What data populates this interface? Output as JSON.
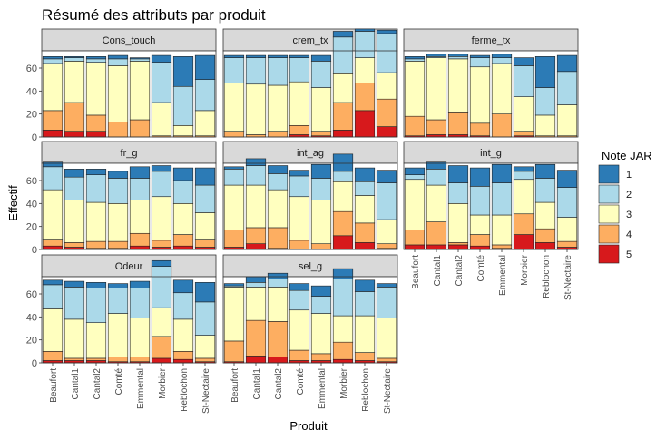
{
  "chart_data": {
    "type": "bar",
    "title": "Résumé des attributs par produit",
    "xlabel": "Produit",
    "ylabel": "Effectif",
    "ylim": [
      0,
      75
    ],
    "yticks": [
      0,
      20,
      40,
      60
    ],
    "categories": [
      "Beaufort",
      "Cantal1",
      "Cantal2",
      "Comté",
      "Emmental",
      "Morbier",
      "Reblochon",
      "St-Nectaire"
    ],
    "legend": {
      "title": "Note JAR",
      "position": "right",
      "levels": [
        {
          "label": "1",
          "color": "#2C7BB6"
        },
        {
          "label": "2",
          "color": "#ABD9E9"
        },
        {
          "label": "3",
          "color": "#FFFFBF"
        },
        {
          "label": "4",
          "color": "#FDAE61"
        },
        {
          "label": "5",
          "color": "#D7191C"
        }
      ]
    },
    "panels": [
      {
        "name": "Cons_touch",
        "counts": [
          [
            2,
            4,
            41,
            17,
            6
          ],
          [
            1,
            3,
            36,
            25,
            5
          ],
          [
            2,
            3,
            46,
            14,
            5
          ],
          [
            3,
            6,
            49,
            13,
            0
          ],
          [
            1,
            2,
            51,
            15,
            0
          ],
          [
            6,
            35,
            29,
            1,
            0
          ],
          [
            26,
            34,
            9,
            1,
            0
          ],
          [
            21,
            27,
            22,
            1,
            0
          ]
        ]
      },
      {
        "name": "crem_tx",
        "counts": [
          [
            2,
            22,
            42,
            5,
            0
          ],
          [
            2,
            23,
            44,
            2,
            0
          ],
          [
            2,
            24,
            40,
            5,
            0
          ],
          [
            2,
            21,
            38,
            8,
            2
          ],
          [
            5,
            23,
            38,
            4,
            1
          ],
          [
            5,
            32,
            25,
            24,
            6
          ],
          [
            2,
            23,
            22,
            24,
            23
          ],
          [
            3,
            34,
            23,
            24,
            9
          ]
        ]
      },
      {
        "name": "ferme_tx",
        "counts": [
          [
            2,
            2,
            48,
            17,
            1
          ],
          [
            2,
            1,
            54,
            13,
            2
          ],
          [
            2,
            2,
            47,
            19,
            2
          ],
          [
            2,
            8,
            49,
            11,
            1
          ],
          [
            3,
            5,
            44,
            20,
            0
          ],
          [
            7,
            27,
            30,
            4,
            1
          ],
          [
            27,
            24,
            18,
            1,
            0
          ],
          [
            14,
            29,
            27,
            1,
            0
          ]
        ]
      },
      {
        "name": "fr_g",
        "counts": [
          [
            4,
            20,
            43,
            6,
            3
          ],
          [
            7,
            20,
            37,
            4,
            2
          ],
          [
            5,
            24,
            34,
            6,
            1
          ],
          [
            6,
            22,
            33,
            6,
            1
          ],
          [
            10,
            19,
            29,
            11,
            3
          ],
          [
            5,
            22,
            38,
            6,
            2
          ],
          [
            11,
            20,
            27,
            10,
            3
          ],
          [
            15,
            24,
            23,
            7,
            2
          ]
        ]
      },
      {
        "name": "int_ag",
        "counts": [
          [
            2,
            14,
            39,
            15,
            2
          ],
          [
            6,
            17,
            37,
            14,
            5
          ],
          [
            7,
            14,
            33,
            18,
            1
          ],
          [
            5,
            18,
            38,
            8,
            0
          ],
          [
            12,
            19,
            38,
            5,
            0
          ],
          [
            15,
            9,
            26,
            21,
            12
          ],
          [
            12,
            12,
            24,
            17,
            6
          ],
          [
            11,
            32,
            21,
            4,
            1
          ]
        ]
      },
      {
        "name": "int_g",
        "counts": [
          [
            6,
            4,
            44,
            13,
            4
          ],
          [
            6,
            14,
            32,
            20,
            4
          ],
          [
            15,
            18,
            34,
            2,
            4
          ],
          [
            16,
            25,
            17,
            10,
            3
          ],
          [
            16,
            28,
            26,
            3,
            1
          ],
          [
            4,
            7,
            30,
            18,
            13
          ],
          [
            12,
            21,
            23,
            12,
            6
          ],
          [
            15,
            26,
            21,
            5,
            2
          ]
        ]
      },
      {
        "name": "Odeur",
        "counts": [
          [
            4,
            21,
            37,
            8,
            2
          ],
          [
            5,
            28,
            34,
            2,
            2
          ],
          [
            5,
            30,
            31,
            2,
            2
          ],
          [
            4,
            22,
            38,
            4,
            1
          ],
          [
            6,
            26,
            34,
            4,
            1
          ],
          [
            5,
            36,
            25,
            19,
            4
          ],
          [
            11,
            23,
            28,
            7,
            3
          ],
          [
            17,
            29,
            20,
            3,
            1
          ]
        ]
      },
      {
        "name": "sel_g",
        "counts": [
          [
            2,
            1,
            47,
            18,
            1
          ],
          [
            5,
            4,
            29,
            31,
            6
          ],
          [
            5,
            7,
            30,
            31,
            5
          ],
          [
            6,
            17,
            35,
            9,
            2
          ],
          [
            9,
            15,
            35,
            6,
            2
          ],
          [
            9,
            32,
            23,
            15,
            3
          ],
          [
            10,
            21,
            32,
            7,
            2
          ],
          [
            3,
            27,
            35,
            3,
            1
          ]
        ]
      }
    ]
  }
}
